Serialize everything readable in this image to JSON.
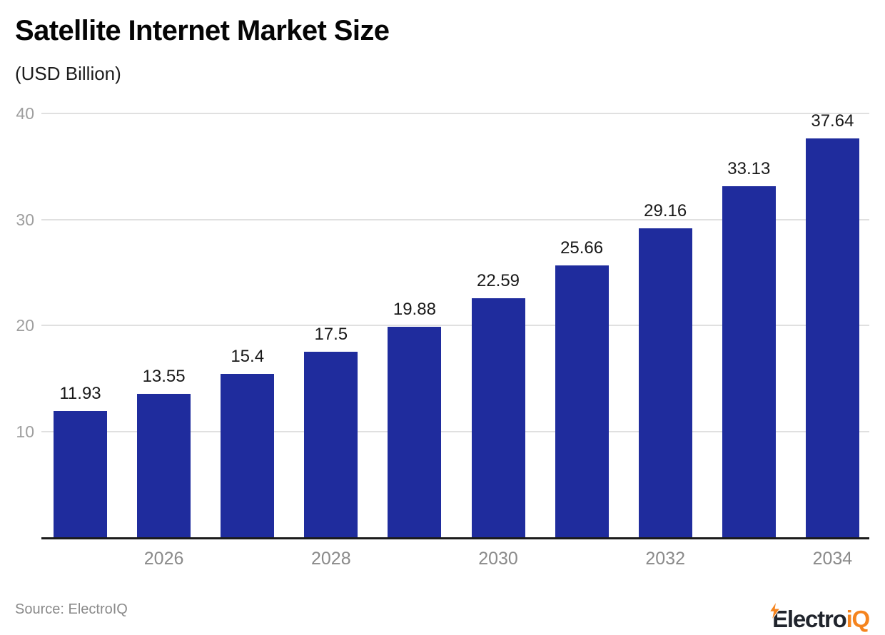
{
  "header": {
    "title": "Satellite Internet Market Size",
    "subtitle": "(USD Billion)"
  },
  "chart_data": {
    "type": "bar",
    "title": "Satellite Internet Market Size",
    "units_label": "(USD Billion)",
    "categories": [
      "2025",
      "2026",
      "2027",
      "2028",
      "2029",
      "2030",
      "2031",
      "2032",
      "2033",
      "2034"
    ],
    "values": [
      11.93,
      13.55,
      15.4,
      17.5,
      19.88,
      22.59,
      25.66,
      29.16,
      33.13,
      37.64
    ],
    "value_labels": [
      "11.93",
      "13.55",
      "15.4",
      "17.5",
      "19.88",
      "22.59",
      "25.66",
      "29.16",
      "33.13",
      "37.64"
    ],
    "xtick_labels_shown": [
      "2026",
      "2028",
      "2030",
      "2032",
      "2034"
    ],
    "yticks": [
      10,
      20,
      30,
      40
    ],
    "ylim": [
      0,
      40
    ],
    "xlabel": "",
    "ylabel": "",
    "grid": "horizontal",
    "legend": "none",
    "bar_color": "#1f2c9d",
    "gridline_color": "#e0e0e0",
    "axis_color": "#1b1b1b"
  },
  "footer": {
    "source": "Source: ElectroIQ",
    "logo": {
      "text_dark": "Electro",
      "text_accent": "iQ",
      "dark_color": "#20242c",
      "accent_color": "#f5841e"
    }
  }
}
